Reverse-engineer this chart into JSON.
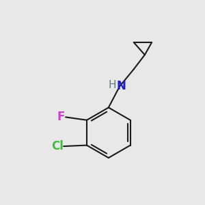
{
  "background_color": "#e8e8e8",
  "bond_color": "#1a1a1a",
  "bond_width": 1.5,
  "N_color": "#2020cc",
  "F_color": "#cc40cc",
  "Cl_color": "#40bb40",
  "H_color": "#607878",
  "font_size_N": 12,
  "font_size_H": 11,
  "font_size_F": 12,
  "font_size_Cl": 12,
  "fig_size": [
    3.0,
    3.0
  ],
  "dpi": 100,
  "xlim": [
    0.0,
    10.0
  ],
  "ylim": [
    0.0,
    10.0
  ]
}
